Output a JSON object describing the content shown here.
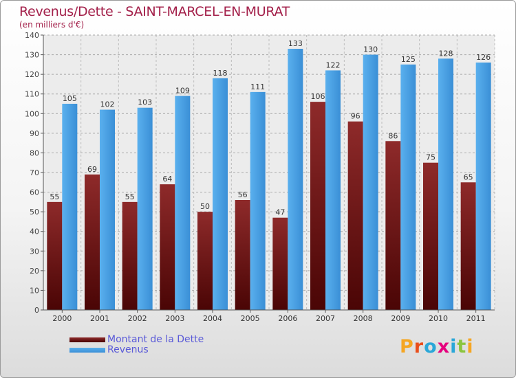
{
  "title": "Revenus/Dette - SAINT-MARCEL-EN-MURAT",
  "subtitle": "(en milliers d'€)",
  "logo": {
    "letters": [
      "P",
      "r",
      "o",
      "x",
      "i",
      "t",
      "i"
    ],
    "colors": [
      "#f5a623",
      "#e94e1b",
      "#2aa7d8",
      "#e6007e",
      "#2aa7d8",
      "#8bc53f",
      "#f5a623"
    ]
  },
  "colors": {
    "dette": "#7a1a1a",
    "revenus": "#4aa3e6",
    "title": "#a3204a",
    "legend_text": "#5a5ad8"
  },
  "chart_data": {
    "type": "bar",
    "title": "Revenus/Dette - SAINT-MARCEL-EN-MURAT",
    "ylabel": "(en milliers d'€)",
    "categories": [
      "2000",
      "2001",
      "2002",
      "2003",
      "2004",
      "2005",
      "2006",
      "2007",
      "2008",
      "2009",
      "2010",
      "2011"
    ],
    "ylim": [
      0,
      140
    ],
    "yticks": [
      0,
      10,
      20,
      30,
      40,
      50,
      60,
      70,
      80,
      90,
      100,
      110,
      120,
      130,
      140
    ],
    "grid": true,
    "legend": "bottom",
    "series": [
      {
        "name": "Montant de la Dette",
        "color": "#7a1a1a",
        "values": [
          55,
          69,
          55,
          64,
          50,
          56,
          47,
          106,
          96,
          86,
          75,
          65
        ]
      },
      {
        "name": "Revenus",
        "color": "#4aa3e6",
        "values": [
          105,
          102,
          103,
          109,
          118,
          111,
          133,
          122,
          130,
          125,
          128,
          126
        ]
      }
    ]
  }
}
